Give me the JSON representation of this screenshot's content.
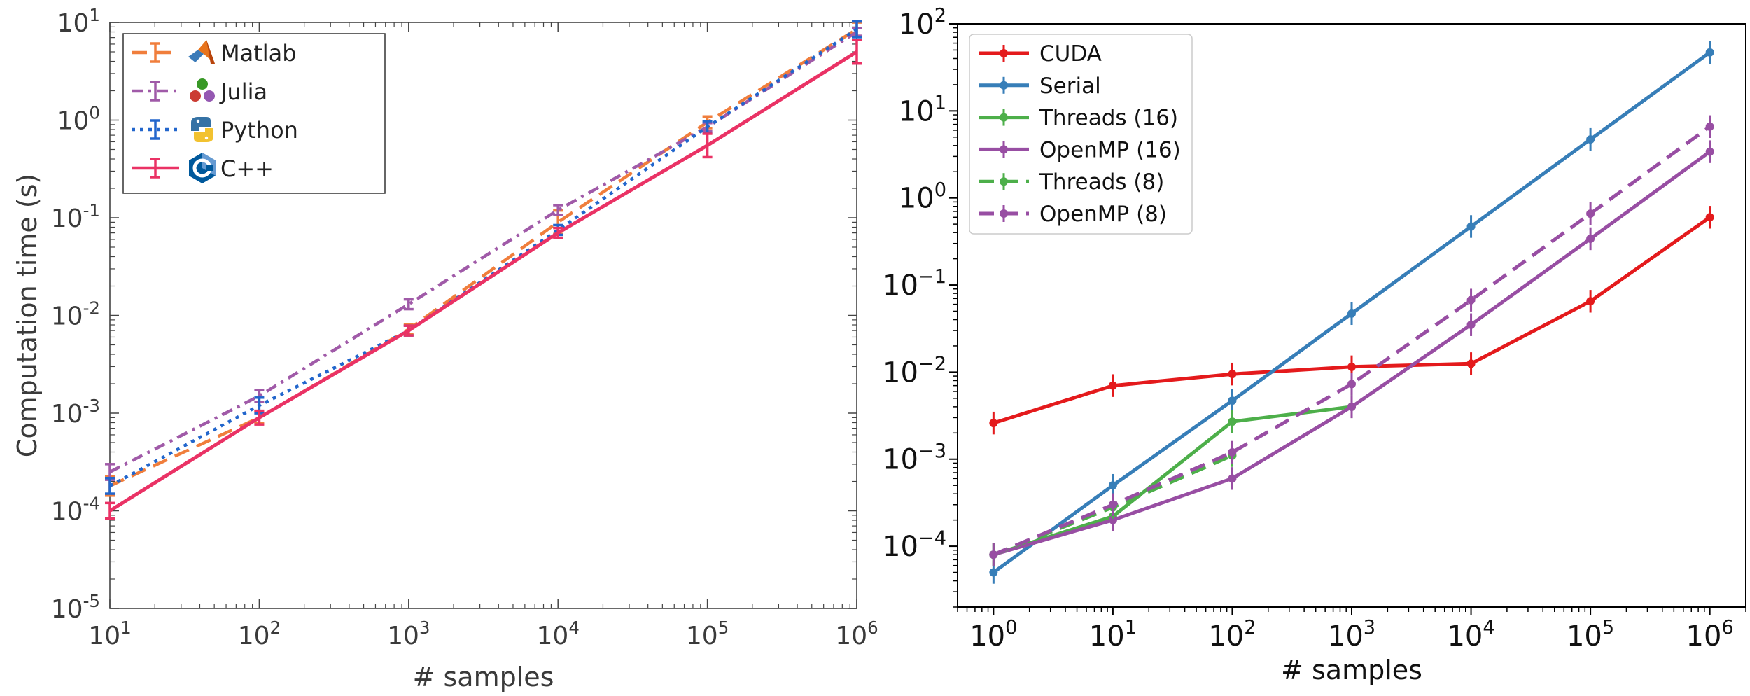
{
  "chart_data": [
    {
      "type": "line",
      "xlabel": "# samples",
      "ylabel": "Computation time (s)",
      "xscale": "log",
      "yscale": "log",
      "xlim": [
        10,
        1000000
      ],
      "ylim": [
        1e-05,
        10
      ],
      "x_ticks": [
        {
          "base": "10",
          "exp": "1"
        },
        {
          "base": "10",
          "exp": "2"
        },
        {
          "base": "10",
          "exp": "3"
        },
        {
          "base": "10",
          "exp": "4"
        },
        {
          "base": "10",
          "exp": "5"
        },
        {
          "base": "10",
          "exp": "6"
        }
      ],
      "y_ticks": [
        {
          "base": "10",
          "exp": "-5"
        },
        {
          "base": "10",
          "exp": "-4"
        },
        {
          "base": "10",
          "exp": "-3"
        },
        {
          "base": "10",
          "exp": "-2"
        },
        {
          "base": "10",
          "exp": "-1"
        },
        {
          "base": "10",
          "exp": "0"
        },
        {
          "base": "10",
          "exp": "1"
        }
      ],
      "grid": false,
      "legend_position": "top-left",
      "x": [
        10,
        100,
        1000,
        10000,
        100000,
        1000000
      ],
      "series": [
        {
          "name": "Matlab",
          "color": "#f07e3c",
          "dash": "dashed",
          "icon": "matlab-logo-icon",
          "values": [
            0.00018,
            0.0009,
            0.0072,
            0.09,
            0.95,
            8.5
          ],
          "err": [
            0.1,
            0.06,
            0.05,
            0.12,
            0.06,
            0.07
          ]
        },
        {
          "name": "Julia",
          "color": "#a05aa8",
          "dash": "dashdot",
          "icon": "julia-logo-icon",
          "values": [
            0.00025,
            0.0015,
            0.013,
            0.12,
            0.85,
            8.0
          ],
          "err": [
            0.08,
            0.06,
            0.05,
            0.05,
            0.04,
            0.04
          ]
        },
        {
          "name": "Python",
          "color": "#2266cc",
          "dash": "dotted",
          "icon": "python-logo-icon",
          "values": [
            0.00018,
            0.0012,
            0.007,
            0.075,
            0.85,
            8.5
          ],
          "err": [
            0.08,
            0.08,
            0.05,
            0.05,
            0.06,
            0.08
          ]
        },
        {
          "name": "C++",
          "color": "#ea3265",
          "dash": "solid",
          "icon": "cpp-logo-icon",
          "values": [
            0.0001,
            0.0009,
            0.007,
            0.07,
            0.55,
            5.0
          ],
          "err": [
            0.08,
            0.07,
            0.05,
            0.05,
            0.12,
            0.12
          ]
        }
      ]
    },
    {
      "type": "line",
      "xlabel": "# samples",
      "ylabel": "",
      "xscale": "log",
      "yscale": "log",
      "xlim": [
        0.5,
        2000000
      ],
      "ylim": [
        2e-05,
        100
      ],
      "x_ticks": [
        {
          "base": "10",
          "exp": "0"
        },
        {
          "base": "10",
          "exp": "1"
        },
        {
          "base": "10",
          "exp": "2"
        },
        {
          "base": "10",
          "exp": "3"
        },
        {
          "base": "10",
          "exp": "4"
        },
        {
          "base": "10",
          "exp": "5"
        },
        {
          "base": "10",
          "exp": "6"
        }
      ],
      "y_ticks": [
        {
          "base": "10",
          "exp": "−4"
        },
        {
          "base": "10",
          "exp": "−3"
        },
        {
          "base": "10",
          "exp": "−2"
        },
        {
          "base": "10",
          "exp": "−1"
        },
        {
          "base": "10",
          "exp": "0"
        },
        {
          "base": "10",
          "exp": "1"
        },
        {
          "base": "10",
          "exp": "2"
        }
      ],
      "grid": false,
      "legend_position": "top-left",
      "series": [
        {
          "name": "CUDA",
          "color": "#e41a1c",
          "dash": "solid",
          "x": [
            1,
            10,
            100,
            1000,
            10000,
            100000,
            1000000
          ],
          "values": [
            0.0026,
            0.007,
            0.0095,
            0.0115,
            0.0125,
            0.065,
            0.6
          ]
        },
        {
          "name": "Serial",
          "color": "#377eb8",
          "dash": "solid",
          "x": [
            1,
            10,
            100,
            1000,
            10000,
            100000,
            1000000
          ],
          "values": [
            5e-05,
            0.0005,
            0.0047,
            0.047,
            0.47,
            4.7,
            47
          ]
        },
        {
          "name": "Threads (16)",
          "color": "#4daf4a",
          "dash": "solid",
          "x": [
            1,
            10,
            100,
            1000
          ],
          "values": [
            8e-05,
            0.00022,
            0.0027,
            0.004
          ]
        },
        {
          "name": "OpenMP (16)",
          "color": "#984ea3",
          "dash": "solid",
          "x": [
            1,
            10,
            100,
            1000,
            10000,
            100000,
            1000000
          ],
          "values": [
            8e-05,
            0.0002,
            0.0006,
            0.004,
            0.035,
            0.34,
            3.4
          ]
        },
        {
          "name": "Threads (8)",
          "color": "#4daf4a",
          "dash": "dashed",
          "x": [
            1,
            10,
            100
          ],
          "values": [
            8e-05,
            0.00028,
            0.0011
          ]
        },
        {
          "name": "OpenMP (8)",
          "color": "#984ea3",
          "dash": "dashed",
          "x": [
            1,
            10,
            100,
            1000,
            10000,
            100000,
            1000000
          ],
          "values": [
            8e-05,
            0.0003,
            0.0012,
            0.0073,
            0.067,
            0.66,
            6.6
          ]
        }
      ]
    }
  ]
}
